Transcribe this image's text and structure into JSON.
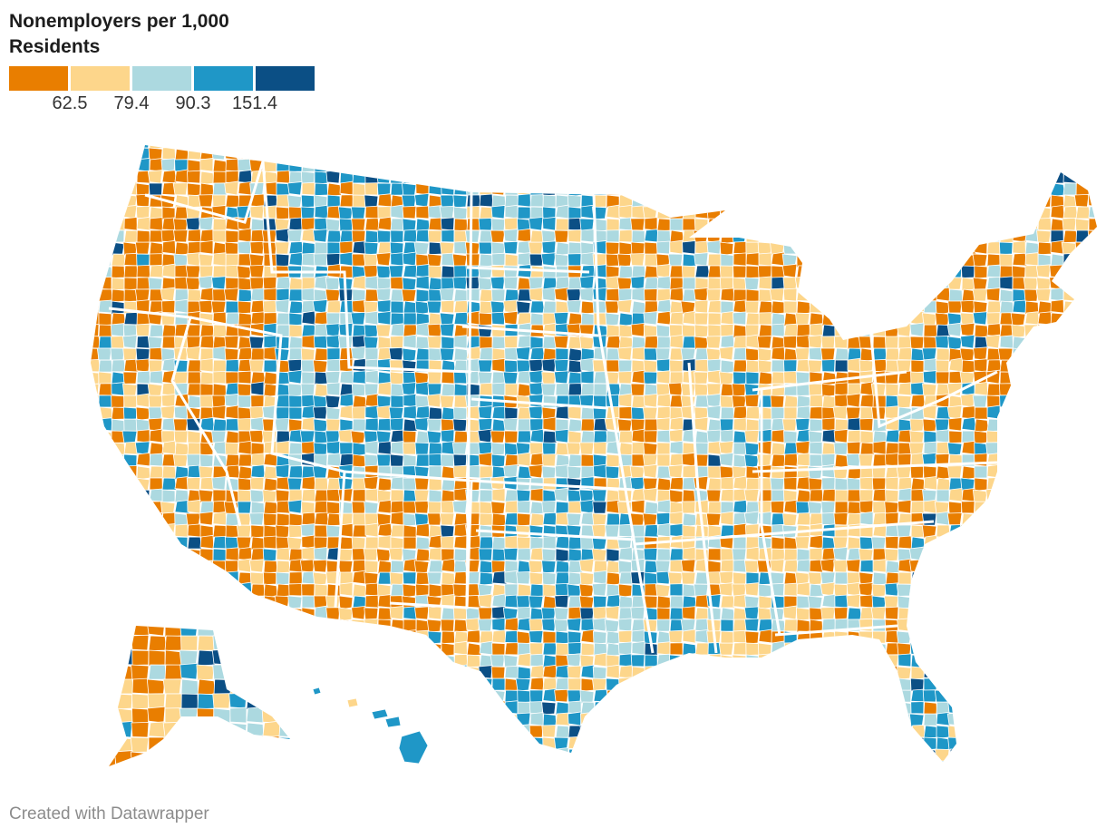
{
  "title": "Nonemployers per 1,000 Residents",
  "legend": {
    "colors": [
      "#e97e00",
      "#fdd68b",
      "#acd9e0",
      "#1f97c7",
      "#0b4f85"
    ],
    "breaks": [
      "62.5",
      "79.4",
      "90.3",
      "151.4"
    ]
  },
  "map": {
    "type": "choropleth",
    "geography": "US counties",
    "background": "#ffffff",
    "border_color": "#ffffff"
  },
  "credit": "Created with Datawrapper"
}
